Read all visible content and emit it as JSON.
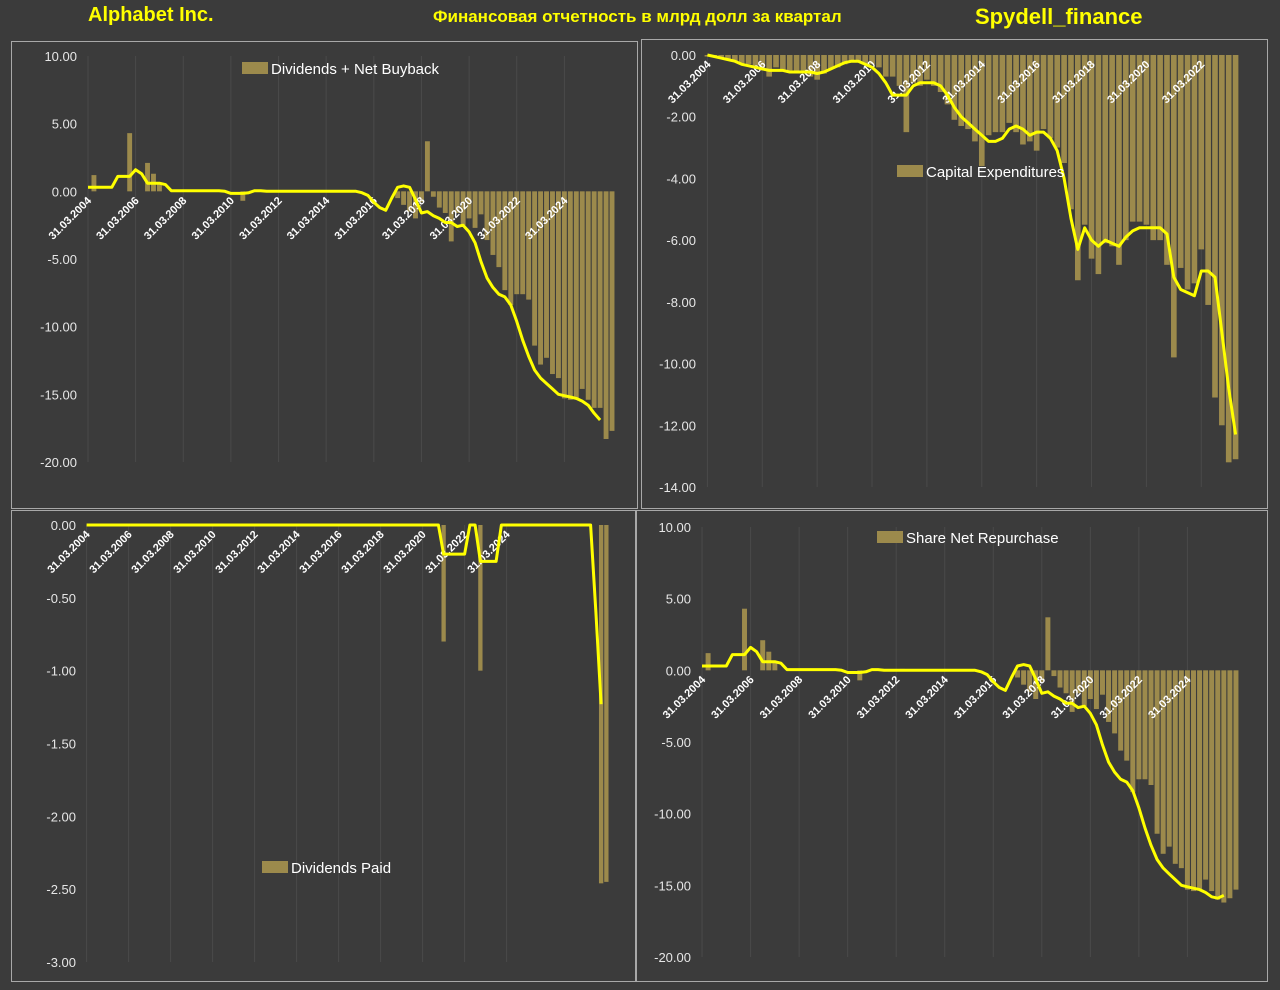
{
  "header": {
    "company": "Alphabet Inc.",
    "subtitle": "Финансовая отчетность в млрд долл за квартал",
    "brand": "Spydell_finance"
  },
  "colors": {
    "background": "#3b3b3b",
    "bar": "#9c8a4c",
    "line": "#ffff00",
    "title": "#ffff00",
    "grid": "#4a4a4a"
  },
  "chart_data": [
    {
      "type": "bar",
      "series": [
        {
          "name": "Dividends + Net Buyback"
        }
      ],
      "ylim": [
        -20,
        10
      ],
      "yticks": [
        "10.00",
        "5.00",
        "0.00",
        "-5.00",
        "-10.00",
        "-15.00",
        "-20.00"
      ],
      "xticks": [
        "31.03.2004",
        "31.03.2006",
        "31.03.2008",
        "31.03.2010",
        "31.03.2012",
        "31.03.2014",
        "31.03.2016",
        "31.03.2018",
        "31.03.2020",
        "31.03.2022",
        "31.03.2024"
      ],
      "x_start": "2004-03-31",
      "values": [
        0,
        1.2,
        0,
        0,
        0,
        0,
        0,
        4.3,
        0,
        0,
        2.1,
        1.3,
        0.6,
        0,
        0,
        0,
        0,
        0,
        0,
        0,
        0,
        0,
        0,
        0,
        0,
        0,
        -0.7,
        0,
        0,
        0.1,
        0,
        0,
        0,
        0.1,
        0,
        0,
        0,
        0,
        0,
        0,
        0,
        0,
        0,
        0,
        0,
        0,
        0,
        0,
        0,
        0,
        0,
        0,
        -0.5,
        -1.0,
        -1.5,
        -2.0,
        -0.8,
        3.7,
        -0.4,
        -1.2,
        -1.6,
        -3.7,
        -1.6,
        -2.5,
        -2.0,
        -2.7,
        -1.7,
        -3.6,
        -4.7,
        -5.6,
        -7.3,
        -8.4,
        -7.6,
        -7.6,
        -8.0,
        -11.4,
        -12.8,
        -12.3,
        -13.5,
        -13.8,
        -15.3,
        -15.4,
        -15.3,
        -14.6,
        -15.4,
        -16.0,
        -16.0,
        -18.3,
        -17.7
      ],
      "trend": [
        0.3,
        0.3,
        0.3,
        0.3,
        0.3,
        1.1,
        1.1,
        1.1,
        1.6,
        1.3,
        0.6,
        0.6,
        0.6,
        0.5,
        0.05,
        0.05,
        0.05,
        0.05,
        0.05,
        0.05,
        0.05,
        0.05,
        0.05,
        0.0,
        -0.15,
        -0.15,
        -0.15,
        -0.1,
        0.05,
        0.05,
        0.0,
        0.0,
        0.0,
        0.0,
        0.0,
        0.0,
        0.0,
        0.0,
        0.0,
        0.0,
        0.0,
        0.0,
        0.0,
        0.0,
        0.0,
        0.0,
        -0.1,
        -0.3,
        -0.8,
        -1.2,
        -1.4,
        -0.5,
        0.3,
        0.4,
        0.3,
        -0.6,
        -1.6,
        -1.5,
        -1.8,
        -2.0,
        -2.3,
        -2.3,
        -2.6,
        -2.5,
        -3.0,
        -3.8,
        -5.2,
        -6.4,
        -7.1,
        -7.6,
        -7.8,
        -8.4,
        -9.6,
        -11.0,
        -12.2,
        -13.2,
        -13.8,
        -14.2,
        -14.6,
        -15.0,
        -15.1,
        -15.2,
        -15.3,
        -15.5,
        -15.8,
        -16.4,
        -16.9
      ]
    },
    {
      "type": "bar",
      "series": [
        {
          "name": "Capital Expenditures"
        }
      ],
      "ylim": [
        -14,
        0
      ],
      "yticks": [
        "0.00",
        "-2.00",
        "-4.00",
        "-6.00",
        "-8.00",
        "-10.00",
        "-12.00",
        "-14.00"
      ],
      "xticks": [
        "31.03.2004",
        "31.03.2006",
        "31.03.2008",
        "31.03.2010",
        "31.03.2012",
        "31.03.2014",
        "31.03.2016",
        "31.03.2018",
        "31.03.2020",
        "31.03.2022",
        "31.03.2024"
      ],
      "x_start": "2004-03-31",
      "values": [
        -0.05,
        -0.05,
        -0.1,
        -0.15,
        -0.2,
        -0.3,
        -0.3,
        -0.4,
        -0.5,
        -0.7,
        -0.4,
        -0.5,
        -0.5,
        -0.6,
        -0.6,
        -0.7,
        -0.8,
        -0.6,
        -0.45,
        -0.4,
        -0.3,
        -0.2,
        -0.2,
        -0.3,
        -0.3,
        -0.4,
        -0.7,
        -0.7,
        -1.0,
        -2.5,
        -0.9,
        -1.0,
        -0.8,
        -1.0,
        -1.2,
        -1.6,
        -2.1,
        -2.3,
        -2.4,
        -2.8,
        -3.6,
        -2.6,
        -2.5,
        -2.5,
        -2.2,
        -2.5,
        -2.9,
        -2.8,
        -3.1,
        -2.4,
        -2.7,
        -3.0,
        -3.5,
        -5.0,
        -7.3,
        -5.5,
        -6.6,
        -7.1,
        -6.1,
        -6.2,
        -6.8,
        -6.0,
        -5.4,
        -5.4,
        -5.5,
        -6.0,
        -6.0,
        -6.8,
        -9.8,
        -6.9,
        -7.6,
        -7.4,
        -6.3,
        -8.1,
        -11.1,
        -12.0,
        -13.2,
        -13.1
      ],
      "trend": [
        0,
        -0.05,
        -0.1,
        -0.15,
        -0.2,
        -0.3,
        -0.35,
        -0.4,
        -0.45,
        -0.5,
        -0.5,
        -0.5,
        -0.55,
        -0.55,
        -0.55,
        -0.55,
        -0.6,
        -0.55,
        -0.45,
        -0.35,
        -0.25,
        -0.2,
        -0.2,
        -0.3,
        -0.4,
        -0.6,
        -0.9,
        -1.3,
        -1.3,
        -1.3,
        -1.0,
        -0.9,
        -0.9,
        -0.9,
        -1.0,
        -1.3,
        -1.7,
        -2.0,
        -2.2,
        -2.4,
        -2.6,
        -2.8,
        -2.8,
        -2.7,
        -2.4,
        -2.3,
        -2.4,
        -2.6,
        -2.5,
        -2.5,
        -2.7,
        -3.1,
        -4.0,
        -5.3,
        -6.3,
        -5.6,
        -6.0,
        -6.2,
        -6.0,
        -6.1,
        -6.2,
        -5.9,
        -5.7,
        -5.6,
        -5.6,
        -5.6,
        -5.6,
        -5.8,
        -7.2,
        -7.6,
        -7.7,
        -7.8,
        -7.0,
        -7.0,
        -7.2,
        -9.0,
        -10.8,
        -12.3
      ]
    },
    {
      "type": "bar",
      "series": [
        {
          "name": "Dividends Paid"
        }
      ],
      "ylim": [
        -3,
        0
      ],
      "yticks": [
        "0.00",
        "-0.50",
        "-1.00",
        "-1.50",
        "-2.00",
        "-2.50",
        "-3.00"
      ],
      "xticks": [
        "31.03.2004",
        "31.03.2006",
        "31.03.2008",
        "31.03.2010",
        "31.03.2012",
        "31.03.2014",
        "31.03.2016",
        "31.03.2018",
        "31.03.2020",
        "31.03.2022",
        "31.03.2024"
      ],
      "x_start": "2004-03-31",
      "values": [
        0,
        0,
        0,
        0,
        0,
        0,
        0,
        0,
        0,
        0,
        0,
        0,
        0,
        0,
        0,
        0,
        0,
        0,
        0,
        0,
        0,
        0,
        0,
        0,
        0,
        0,
        0,
        0,
        0,
        0,
        0,
        0,
        0,
        0,
        0,
        0,
        0,
        0,
        0,
        0,
        0,
        0,
        0,
        0,
        0,
        0,
        0,
        0,
        0,
        0,
        0,
        0,
        0,
        0,
        0,
        0,
        0,
        0,
        0,
        0,
        0,
        0,
        0,
        0,
        0,
        0,
        0,
        0,
        -0.8,
        0,
        0,
        0,
        0,
        0,
        0,
        -1.0,
        0,
        0,
        0,
        0,
        0,
        0,
        0,
        0,
        0,
        0,
        0,
        0,
        0,
        0,
        0,
        0,
        0,
        0,
        0,
        0,
        0,
        0,
        -2.46,
        -2.45
      ],
      "trend": [
        0,
        0,
        0,
        0,
        0,
        0,
        0,
        0,
        0,
        0,
        0,
        0,
        0,
        0,
        0,
        0,
        0,
        0,
        0,
        0,
        0,
        0,
        0,
        0,
        0,
        0,
        0,
        0,
        0,
        0,
        0,
        0,
        0,
        0,
        0,
        0,
        0,
        0,
        0,
        0,
        0,
        0,
        0,
        0,
        0,
        0,
        0,
        0,
        0,
        0,
        0,
        0,
        0,
        0,
        0,
        0,
        0,
        0,
        0,
        0,
        0,
        0,
        0,
        0,
        0,
        0,
        0,
        0,
        -0.2,
        -0.2,
        -0.2,
        -0.2,
        -0.2,
        0,
        0,
        -0.25,
        -0.25,
        -0.25,
        -0.25,
        0,
        0,
        0,
        0,
        0,
        0,
        0,
        0,
        0,
        0,
        0,
        0,
        0,
        0,
        0,
        0,
        0,
        0,
        -0.6,
        -1.23
      ]
    },
    {
      "type": "bar",
      "series": [
        {
          "name": "Share Net Repurchase"
        }
      ],
      "ylim": [
        -20,
        10
      ],
      "yticks": [
        "10.00",
        "5.00",
        "0.00",
        "-5.00",
        "-10.00",
        "-15.00",
        "-20.00"
      ],
      "xticks": [
        "31.03.2004",
        "31.03.2006",
        "31.03.2008",
        "31.03.2010",
        "31.03.2012",
        "31.03.2014",
        "31.03.2016",
        "31.03.2018",
        "31.03.2020",
        "31.03.2022",
        "31.03.2024"
      ],
      "x_start": "2004-03-31",
      "values": [
        0,
        1.2,
        0,
        0,
        0,
        0,
        0,
        4.3,
        0,
        0,
        2.1,
        1.3,
        0.6,
        0,
        0,
        0,
        0,
        0,
        0,
        0,
        0,
        0,
        0,
        0,
        0,
        0,
        -0.7,
        0,
        0,
        0.1,
        0,
        0,
        0,
        0.1,
        0,
        0,
        0,
        0,
        0,
        0,
        0,
        0,
        0,
        0,
        0,
        0,
        0,
        0,
        0,
        0,
        0,
        0,
        -0.5,
        -1.0,
        -1.5,
        -2.0,
        -0.8,
        3.7,
        -0.4,
        -1.2,
        -1.6,
        -2.9,
        -1.6,
        -2.5,
        -2.0,
        -2.7,
        -1.7,
        -3.6,
        -4.4,
        -5.6,
        -6.3,
        -8.5,
        -7.6,
        -7.6,
        -8.0,
        -11.4,
        -12.8,
        -12.3,
        -13.5,
        -13.8,
        -15.3,
        -15.4,
        -15.3,
        -14.6,
        -15.4,
        -16.0,
        -16.2,
        -15.9,
        -15.3
      ],
      "trend": [
        0.3,
        0.3,
        0.3,
        0.3,
        0.3,
        1.1,
        1.1,
        1.1,
        1.6,
        1.3,
        0.6,
        0.6,
        0.6,
        0.5,
        0.05,
        0.05,
        0.05,
        0.05,
        0.05,
        0.05,
        0.05,
        0.05,
        0.05,
        0.0,
        -0.15,
        -0.15,
        -0.15,
        -0.1,
        0.05,
        0.05,
        0.0,
        0.0,
        0.0,
        0.0,
        0.0,
        0.0,
        0.0,
        0.0,
        0.0,
        0.0,
        0.0,
        0.0,
        0.0,
        0.0,
        0.0,
        0.0,
        -0.1,
        -0.3,
        -0.8,
        -1.2,
        -1.4,
        -0.5,
        0.3,
        0.4,
        0.3,
        -0.6,
        -1.6,
        -1.5,
        -1.8,
        -2.0,
        -2.3,
        -2.3,
        -2.6,
        -2.5,
        -3.0,
        -3.8,
        -5.2,
        -6.4,
        -7.1,
        -7.6,
        -7.8,
        -8.4,
        -9.6,
        -11.0,
        -12.2,
        -13.2,
        -13.8,
        -14.2,
        -14.6,
        -15.0,
        -15.1,
        -15.2,
        -15.3,
        -15.5,
        -15.8,
        -15.9,
        -15.7
      ]
    }
  ]
}
